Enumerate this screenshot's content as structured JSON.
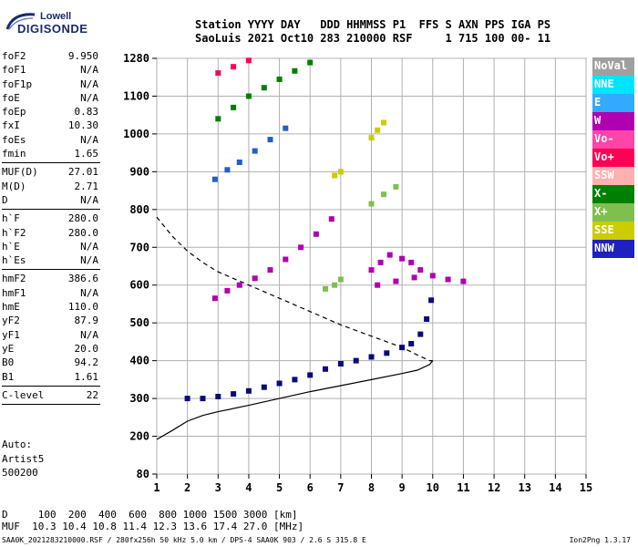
{
  "header": {
    "line1": "Station YYYY DAY   DDD HHMMSS P1  FFS S AXN PPS IGA PS",
    "line2": "SaoLuis 2021 Oct10 283 210000 RSF     1 715 100 00- 11"
  },
  "logo": {
    "line1": "Lowell",
    "line2": "DIGISONDE"
  },
  "params": [
    {
      "name": "foF2",
      "value": "9.950"
    },
    {
      "name": "foF1",
      "value": "N/A"
    },
    {
      "name": "foF1p",
      "value": "N/A"
    },
    {
      "name": "foE",
      "value": "N/A"
    },
    {
      "name": "foEp",
      "value": "0.83"
    },
    {
      "name": "fxI",
      "value": "10.30"
    },
    {
      "name": "foEs",
      "value": "N/A"
    },
    {
      "name": "fmin",
      "value": "1.65"
    },
    {
      "sep": true
    },
    {
      "name": "MUF(D)",
      "value": "27.01"
    },
    {
      "name": "M(D)",
      "value": "2.71"
    },
    {
      "name": "D",
      "value": "N/A"
    },
    {
      "sep": true
    },
    {
      "name": "h`F",
      "value": "280.0"
    },
    {
      "name": "h`F2",
      "value": "280.0"
    },
    {
      "name": "h`E",
      "value": "N/A"
    },
    {
      "name": "h`Es",
      "value": "N/A"
    },
    {
      "sep": true
    },
    {
      "name": "hmF2",
      "value": "386.6"
    },
    {
      "name": "hmF1",
      "value": "N/A"
    },
    {
      "name": "hmE",
      "value": "110.0"
    },
    {
      "name": "yF2",
      "value": "87.9"
    },
    {
      "name": "yF1",
      "value": "N/A"
    },
    {
      "name": "yE",
      "value": "20.0"
    },
    {
      "name": "B0",
      "value": "94.2"
    },
    {
      "name": "B1",
      "value": "1.61"
    },
    {
      "sep": true
    },
    {
      "name": "C-level",
      "value": "22"
    },
    {
      "sep": true
    }
  ],
  "auto": [
    "Auto:",
    "Artist5",
    "500200"
  ],
  "legend": [
    {
      "label": "NoVal",
      "color": "#a0a0a0"
    },
    {
      "label": "NNE",
      "color": "#00e5ff"
    },
    {
      "label": "E",
      "color": "#33aaff"
    },
    {
      "label": "W",
      "color": "#b000b0"
    },
    {
      "label": "Vo-",
      "color": "#ff44aa"
    },
    {
      "label": "Vo+",
      "color": "#ff0055"
    },
    {
      "label": "SSW",
      "color": "#ffb0b0"
    },
    {
      "label": "X-",
      "color": "#008000"
    },
    {
      "label": "X+",
      "color": "#7fbf4f"
    },
    {
      "label": "SSE",
      "color": "#cccc00"
    },
    {
      "label": "NNW",
      "color": "#2020c0"
    }
  ],
  "footer": {
    "d_row": "D     100  200  400  600  800 1000 1500 3000 [km]",
    "muf_row": "MUF  10.3 10.4 10.8 11.4 12.3 13.6 17.4 27.0 [MHz]",
    "file": "SAA0K_2021283210000.RSF / 280fx256h 50 kHz 5.0 km / DPS-4 SAA0K 903 / 2.6 S 315.8 E",
    "version": "Ion2Png 1.3.17"
  },
  "chart_data": {
    "type": "scatter",
    "xlim": [
      1,
      15
    ],
    "ylim": [
      80,
      1280
    ],
    "x_ticks": [
      "1",
      "2",
      "3",
      "4",
      "5",
      "6",
      "7",
      "8",
      "9",
      "10",
      "11",
      "12",
      "13",
      "14",
      "15"
    ],
    "y_ticks": [
      "80",
      "200",
      "300",
      "400",
      "500",
      "600",
      "700",
      "800",
      "900",
      "1000",
      "1100",
      "1280"
    ],
    "y_tick_values": [
      80,
      200,
      300,
      400,
      500,
      600,
      700,
      800,
      900,
      1000,
      1100,
      1280
    ],
    "grid": true,
    "series": [
      {
        "color": "#0a0a7a",
        "points": [
          [
            2.0,
            300
          ],
          [
            2.5,
            300
          ],
          [
            3.0,
            305
          ],
          [
            3.5,
            312
          ],
          [
            4.0,
            320
          ],
          [
            4.5,
            330
          ],
          [
            5.0,
            340
          ],
          [
            5.5,
            350
          ],
          [
            6.0,
            362
          ],
          [
            6.5,
            378
          ],
          [
            7.0,
            392
          ],
          [
            7.5,
            400
          ],
          [
            8.0,
            410
          ],
          [
            8.5,
            420
          ],
          [
            9.0,
            435
          ],
          [
            9.3,
            445
          ],
          [
            9.6,
            470
          ],
          [
            9.8,
            510
          ],
          [
            9.95,
            560
          ]
        ]
      },
      {
        "color": "#b000b0",
        "points": [
          [
            2.9,
            565
          ],
          [
            3.3,
            585
          ],
          [
            3.7,
            600
          ],
          [
            4.2,
            618
          ],
          [
            4.7,
            640
          ],
          [
            5.2,
            668
          ],
          [
            5.7,
            700
          ],
          [
            6.2,
            735
          ],
          [
            6.7,
            775
          ]
        ]
      },
      {
        "color": "#2060c0",
        "points": [
          [
            2.9,
            880
          ],
          [
            3.3,
            905
          ],
          [
            3.7,
            925
          ],
          [
            4.2,
            955
          ],
          [
            4.7,
            985
          ],
          [
            5.2,
            1015
          ]
        ]
      },
      {
        "color": "#008000",
        "points": [
          [
            3.0,
            1040
          ],
          [
            3.5,
            1070
          ],
          [
            4.0,
            1100
          ],
          [
            4.5,
            1140
          ],
          [
            5.0,
            1180
          ],
          [
            5.5,
            1220
          ],
          [
            6.0,
            1260
          ]
        ]
      },
      {
        "color": "#ff0055",
        "points": [
          [
            3.0,
            1210
          ],
          [
            3.5,
            1240
          ],
          [
            4.0,
            1270
          ]
        ]
      },
      {
        "color": "#b000b0",
        "points": [
          [
            8.0,
            640
          ],
          [
            8.3,
            660
          ],
          [
            8.6,
            680
          ],
          [
            9.0,
            670
          ],
          [
            9.3,
            660
          ],
          [
            9.6,
            640
          ],
          [
            10.0,
            625
          ],
          [
            10.5,
            615
          ],
          [
            11.0,
            610
          ],
          [
            8.2,
            600
          ],
          [
            8.8,
            610
          ],
          [
            9.4,
            620
          ]
        ]
      },
      {
        "color": "#7fbf4f",
        "points": [
          [
            6.5,
            590
          ],
          [
            6.8,
            600
          ],
          [
            7.0,
            615
          ],
          [
            8.0,
            815
          ],
          [
            8.4,
            840
          ],
          [
            8.8,
            860
          ]
        ]
      },
      {
        "color": "#cccc00",
        "points": [
          [
            8.0,
            990
          ],
          [
            8.2,
            1010
          ],
          [
            8.4,
            1030
          ],
          [
            6.8,
            890
          ],
          [
            7.0,
            900
          ]
        ]
      }
    ],
    "profile_solid": [
      [
        1.0,
        190
      ],
      [
        1.5,
        215
      ],
      [
        2.0,
        240
      ],
      [
        2.5,
        255
      ],
      [
        3.0,
        265
      ],
      [
        4.0,
        282
      ],
      [
        5.0,
        300
      ],
      [
        6.0,
        318
      ],
      [
        7.0,
        334
      ],
      [
        8.0,
        350
      ],
      [
        9.0,
        366
      ],
      [
        9.5,
        375
      ],
      [
        9.9,
        390
      ],
      [
        10.0,
        400
      ]
    ],
    "profile_dashed": [
      [
        1.0,
        780
      ],
      [
        1.5,
        730
      ],
      [
        2.0,
        690
      ],
      [
        2.5,
        660
      ],
      [
        3.0,
        635
      ],
      [
        4.0,
        600
      ],
      [
        5.0,
        565
      ],
      [
        6.0,
        530
      ],
      [
        7.0,
        495
      ],
      [
        8.0,
        465
      ],
      [
        9.0,
        435
      ],
      [
        9.5,
        415
      ],
      [
        9.9,
        400
      ],
      [
        10.0,
        400
      ]
    ]
  }
}
